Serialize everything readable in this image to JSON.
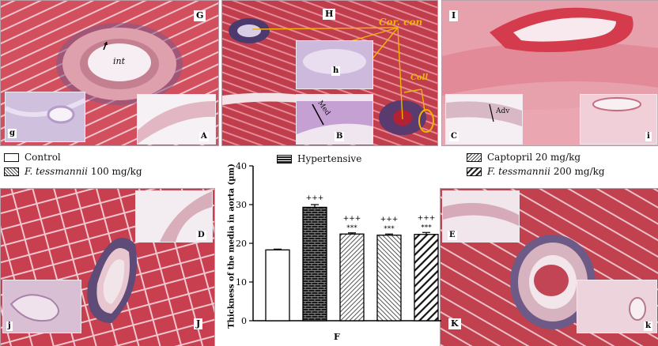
{
  "panels": {
    "G": "G",
    "H": "H",
    "I": "I",
    "A": "A",
    "B": "B",
    "C": "C",
    "g": "g",
    "h": "h",
    "i": "i",
    "D": "D",
    "E": "E",
    "J": "J",
    "K": "K",
    "j": "j",
    "k": "k",
    "F": "F"
  },
  "annotations": {
    "int": "int",
    "cor_con": "Cor. con",
    "coll": "Coll",
    "med": "Med",
    "adv": "Adv"
  },
  "legend": {
    "control": "Control",
    "hypertensive": "Hypertensive",
    "captopril": "Captopril 20 mg/kg",
    "ft100_species": "F. tessmannii",
    "ft100_dose": " 100 mg/kg",
    "ft200_species": "F. tessmannii",
    "ft200_dose": " 200 mg/kg"
  },
  "chart_data": {
    "type": "bar",
    "ylabel": "Thickness of the media in aorta (µm)",
    "xlabel": "F",
    "ylim": [
      0,
      40
    ],
    "yticks": [
      0,
      10,
      20,
      30,
      40
    ],
    "categories": [
      "Control",
      "Hypertensive",
      "Captopril 20 mg/kg",
      "F. tessmannii 100 mg/kg",
      "F. tessmannii 200 mg/kg"
    ],
    "values": [
      18.3,
      29.3,
      22.4,
      22.1,
      22.3
    ],
    "errors": [
      0.2,
      0.7,
      0.3,
      0.3,
      0.5
    ],
    "sig_top": [
      "",
      "+++",
      "+++",
      "+++",
      "+++"
    ],
    "sig_bottom": [
      "",
      "",
      "***",
      "***",
      "***"
    ],
    "patterns": [
      "white",
      "brick",
      "diag-fine",
      "diag-fine-back",
      "diag-wide"
    ]
  },
  "colors": {
    "tissue_red": "#c8404f",
    "tissue_pink": "#e7a7b4",
    "lumen_pale": "#f0d8e0",
    "stain_purple": "#5b3f7a",
    "arrow_yellow": "#f0b400"
  }
}
